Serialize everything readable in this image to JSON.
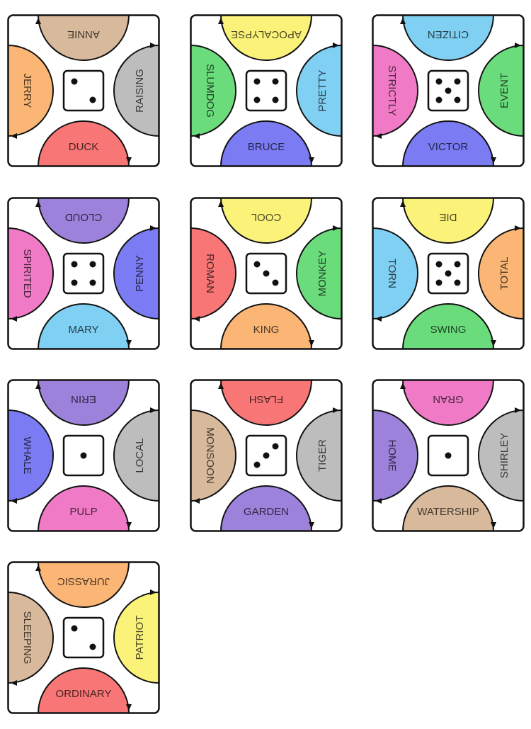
{
  "colors": {
    "tan": "#d9b99b",
    "orange": "#fbb574",
    "gray": "#bdbdbd",
    "red": "#f87676",
    "yellow": "#fbf27a",
    "green": "#6bdc7c",
    "blue": "#80d0f4",
    "indigo": "#7b7bf4",
    "pink": "#f07ac6",
    "purple": "#9d82dc"
  },
  "cards": [
    {
      "die": 2,
      "top": {
        "word": "ANNIE",
        "color": "tan"
      },
      "right": {
        "word": "RAISING",
        "color": "gray"
      },
      "bottom": {
        "word": "DUCK",
        "color": "red"
      },
      "left": {
        "word": "JERRY",
        "color": "orange"
      }
    },
    {
      "die": 4,
      "top": {
        "word": "APOCALYPSE",
        "color": "yellow"
      },
      "right": {
        "word": "PRETTY",
        "color": "blue"
      },
      "bottom": {
        "word": "BRUCE",
        "color": "indigo"
      },
      "left": {
        "word": "SLUMDOG",
        "color": "green"
      }
    },
    {
      "die": 5,
      "top": {
        "word": "CITIZEN",
        "color": "blue"
      },
      "right": {
        "word": "EVENT",
        "color": "green"
      },
      "bottom": {
        "word": "VICTOR",
        "color": "indigo"
      },
      "left": {
        "word": "STRICTLY",
        "color": "pink"
      }
    },
    {
      "die": 4,
      "top": {
        "word": "CLOUD",
        "color": "purple"
      },
      "right": {
        "word": "PENNY",
        "color": "indigo"
      },
      "bottom": {
        "word": "MARY",
        "color": "blue"
      },
      "left": {
        "word": "SPIRITED",
        "color": "pink"
      }
    },
    {
      "die": 3,
      "top": {
        "word": "COOL",
        "color": "yellow"
      },
      "right": {
        "word": "MONKEY",
        "color": "green"
      },
      "bottom": {
        "word": "KING",
        "color": "orange"
      },
      "left": {
        "word": "ROMAN",
        "color": "red"
      }
    },
    {
      "die": 5,
      "top": {
        "word": "DIE",
        "color": "yellow"
      },
      "right": {
        "word": "TOTAL",
        "color": "orange"
      },
      "bottom": {
        "word": "SWING",
        "color": "green"
      },
      "left": {
        "word": "TORN",
        "color": "blue"
      }
    },
    {
      "die": 1,
      "top": {
        "word": "ERIN",
        "color": "purple"
      },
      "right": {
        "word": "LOCAL",
        "color": "gray"
      },
      "bottom": {
        "word": "PULP",
        "color": "pink"
      },
      "left": {
        "word": "WHALE",
        "color": "indigo"
      }
    },
    {
      "die": 3,
      "die_variant": "anti",
      "top": {
        "word": "FLASH",
        "color": "red"
      },
      "right": {
        "word": "TIGER",
        "color": "gray"
      },
      "bottom": {
        "word": "GARDEN",
        "color": "purple"
      },
      "left": {
        "word": "MONSOON",
        "color": "tan"
      }
    },
    {
      "die": 1,
      "top": {
        "word": "GRAN",
        "color": "pink"
      },
      "right": {
        "word": "SHIRLEY",
        "color": "gray"
      },
      "bottom": {
        "word": "WATERSHIP",
        "color": "tan"
      },
      "left": {
        "word": "HOME",
        "color": "purple"
      }
    },
    {
      "die": 2,
      "top": {
        "word": "JURASSIC",
        "color": "orange"
      },
      "right": {
        "word": "PATRIOT",
        "color": "yellow"
      },
      "bottom": {
        "word": "ORDINARY",
        "color": "red"
      },
      "left": {
        "word": "SLEEPING",
        "color": "tan"
      }
    }
  ]
}
